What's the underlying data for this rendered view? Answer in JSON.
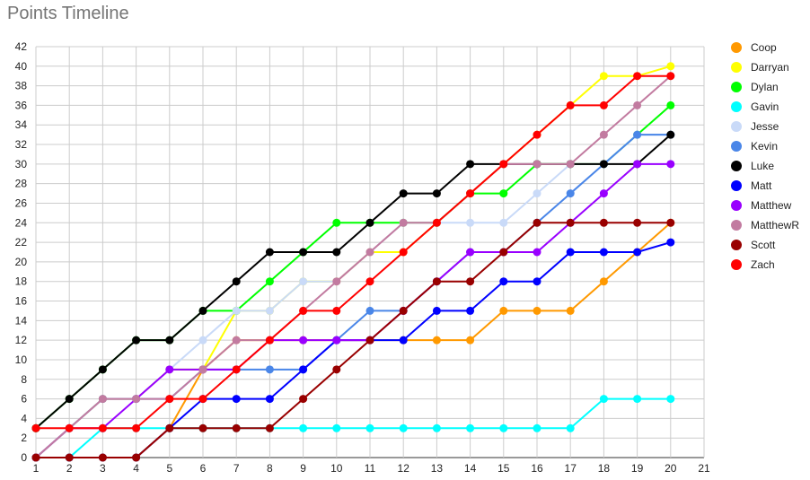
{
  "title": "Points Timeline",
  "chart_data": {
    "type": "line",
    "title": "Points Timeline",
    "xlabel": "",
    "ylabel": "",
    "xlim": [
      1,
      21
    ],
    "ylim": [
      0,
      42
    ],
    "x_ticks": [
      1,
      2,
      3,
      4,
      5,
      6,
      7,
      8,
      9,
      10,
      11,
      12,
      13,
      14,
      15,
      16,
      17,
      18,
      19,
      20,
      21
    ],
    "y_ticks": [
      0,
      2,
      4,
      6,
      8,
      10,
      12,
      14,
      16,
      18,
      20,
      22,
      24,
      26,
      28,
      30,
      32,
      34,
      36,
      38,
      40,
      42
    ],
    "grid": true,
    "legend_position": "right",
    "x": [
      1,
      2,
      3,
      4,
      5,
      6,
      7,
      8,
      9,
      10,
      11,
      12,
      13,
      14,
      15,
      16,
      17,
      18,
      19,
      20
    ],
    "series": [
      {
        "name": "Coop",
        "color": "#ff9900",
        "values": [
          0,
          0,
          0,
          0,
          3,
          9,
          12,
          12,
          12,
          12,
          12,
          12,
          12,
          12,
          15,
          15,
          15,
          18,
          21,
          24
        ]
      },
      {
        "name": "Darryan",
        "color": "#ffff00",
        "values": [
          0,
          3,
          6,
          6,
          9,
          9,
          15,
          15,
          18,
          18,
          21,
          21,
          24,
          27,
          30,
          33,
          36,
          39,
          39,
          40
        ]
      },
      {
        "name": "Dylan",
        "color": "#00ff00",
        "values": [
          3,
          6,
          9,
          12,
          12,
          15,
          15,
          18,
          21,
          24,
          24,
          24,
          24,
          27,
          27,
          30,
          30,
          30,
          33,
          36
        ]
      },
      {
        "name": "Gavin",
        "color": "#00ffff",
        "values": [
          0,
          0,
          3,
          3,
          3,
          3,
          3,
          3,
          3,
          3,
          3,
          3,
          3,
          3,
          3,
          3,
          3,
          6,
          6,
          6
        ]
      },
      {
        "name": "Jesse",
        "color": "#c9daf8",
        "values": [
          0,
          3,
          6,
          6,
          9,
          12,
          15,
          15,
          18,
          18,
          21,
          24,
          24,
          24,
          24,
          27,
          30,
          30,
          33,
          33
        ]
      },
      {
        "name": "Kevin",
        "color": "#4a86e8",
        "values": [
          0,
          3,
          6,
          6,
          6,
          9,
          9,
          9,
          9,
          12,
          15,
          15,
          18,
          21,
          21,
          24,
          27,
          30,
          33,
          33
        ]
      },
      {
        "name": "Luke",
        "color": "#000000",
        "values": [
          3,
          6,
          9,
          12,
          12,
          15,
          18,
          21,
          21,
          21,
          24,
          27,
          27,
          30,
          30,
          30,
          30,
          30,
          30,
          33
        ]
      },
      {
        "name": "Matt",
        "color": "#0000ff",
        "values": [
          0,
          0,
          0,
          0,
          3,
          6,
          6,
          6,
          9,
          12,
          12,
          12,
          15,
          15,
          18,
          18,
          21,
          21,
          21,
          22
        ]
      },
      {
        "name": "Matthew",
        "color": "#9900ff",
        "values": [
          0,
          3,
          3,
          6,
          9,
          9,
          9,
          12,
          12,
          12,
          12,
          15,
          18,
          21,
          21,
          21,
          24,
          27,
          30,
          30
        ]
      },
      {
        "name": "MatthewR",
        "color": "#c27ba0",
        "values": [
          0,
          3,
          6,
          6,
          6,
          9,
          12,
          12,
          15,
          18,
          21,
          24,
          24,
          27,
          30,
          30,
          30,
          33,
          36,
          39
        ]
      },
      {
        "name": "Scott",
        "color": "#990000",
        "values": [
          0,
          0,
          0,
          0,
          3,
          3,
          3,
          3,
          6,
          9,
          12,
          15,
          18,
          18,
          21,
          24,
          24,
          24,
          24,
          24
        ]
      },
      {
        "name": "Zach",
        "color": "#ff0000",
        "values": [
          3,
          3,
          3,
          3,
          6,
          6,
          9,
          12,
          15,
          15,
          18,
          21,
          24,
          27,
          30,
          33,
          36,
          36,
          39,
          39
        ]
      }
    ]
  }
}
